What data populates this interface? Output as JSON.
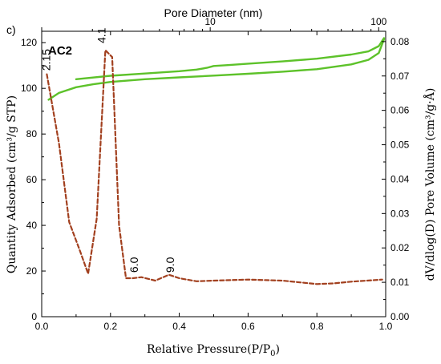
{
  "panel_label": "c)",
  "sample_label": "AC2",
  "chart_data": {
    "type": "line",
    "title": "",
    "xlabel": "Relative Pressure(P/P",
    "xlabel_sub": "0",
    "xlabel_close": ")",
    "ylabel_left": "Quantity Adsorbed (cm³/g STP)",
    "ylabel_right": "dV/dlog(D) Pore Volume (cm³/g·Å)",
    "x2label": "Pore Diameter (nm)",
    "xlim": [
      0.0,
      1.0
    ],
    "ylim_left": [
      0,
      125
    ],
    "ylim_right": [
      0.0,
      0.083
    ],
    "x2scale": "log",
    "x2lim": [
      1.0,
      110.0
    ],
    "x_ticks": [
      "0.0",
      "0.2",
      "0.4",
      "0.6",
      "0.8",
      "1.0"
    ],
    "y_left_ticks": [
      "0",
      "20",
      "40",
      "60",
      "80",
      "100",
      "120"
    ],
    "y_right_ticks": [
      "0.00",
      "0.01",
      "0.02",
      "0.03",
      "0.04",
      "0.05",
      "0.06",
      "0.07",
      "0.08"
    ],
    "x2_ticks": [
      "10",
      "100"
    ],
    "grid": false,
    "series": [
      {
        "axis": "left",
        "color": "#5dc22a",
        "style": "solid",
        "x": [
          0.02,
          0.05,
          0.1,
          0.15,
          0.2,
          0.3,
          0.4,
          0.5,
          0.6,
          0.7,
          0.8,
          0.9,
          0.95,
          0.98,
          0.995
        ],
        "y": [
          95,
          98,
          100.5,
          101.8,
          102.8,
          104.0,
          104.8,
          105.6,
          106.4,
          107.3,
          108.4,
          110.5,
          112.5,
          115.5,
          121.5
        ]
      },
      {
        "axis": "left",
        "color": "#5dc22a",
        "style": "solid",
        "x": [
          0.1,
          0.2,
          0.3,
          0.4,
          0.45,
          0.48,
          0.5,
          0.55,
          0.6,
          0.7,
          0.8,
          0.9,
          0.95,
          0.98,
          0.995
        ],
        "y": [
          104.0,
          105.5,
          106.5,
          107.5,
          108.2,
          109.0,
          109.8,
          110.3,
          110.8,
          111.8,
          113.0,
          114.8,
          116.2,
          118.5,
          122.0
        ]
      },
      {
        "axis": "right",
        "color": "#a2401f",
        "style": "dashed",
        "x": [
          0.015,
          0.05,
          0.08,
          0.11,
          0.135,
          0.16,
          0.185,
          0.205,
          0.225,
          0.245,
          0.265,
          0.29,
          0.33,
          0.37,
          0.4,
          0.45,
          0.5,
          0.6,
          0.7,
          0.8,
          0.85,
          0.9,
          0.99
        ],
        "y": [
          0.0705,
          0.0505,
          0.0275,
          0.0195,
          0.0125,
          0.0285,
          0.0775,
          0.0755,
          0.0265,
          0.0112,
          0.0112,
          0.0115,
          0.0105,
          0.0122,
          0.0112,
          0.0103,
          0.0105,
          0.0108,
          0.0105,
          0.0095,
          0.0097,
          0.0102,
          0.0108
        ]
      }
    ],
    "annotations": [
      {
        "text": "2.15",
        "x": 0.025,
        "y_right": 0.0715,
        "rotate": -90
      },
      {
        "text": "4.1",
        "x": 0.185,
        "y_right": 0.0795,
        "rotate": -90
      },
      {
        "text": "6.0",
        "x": 0.28,
        "y_right": 0.0128,
        "rotate": -90
      },
      {
        "text": "9.0",
        "x": 0.385,
        "y_right": 0.0128,
        "rotate": -90
      }
    ]
  }
}
